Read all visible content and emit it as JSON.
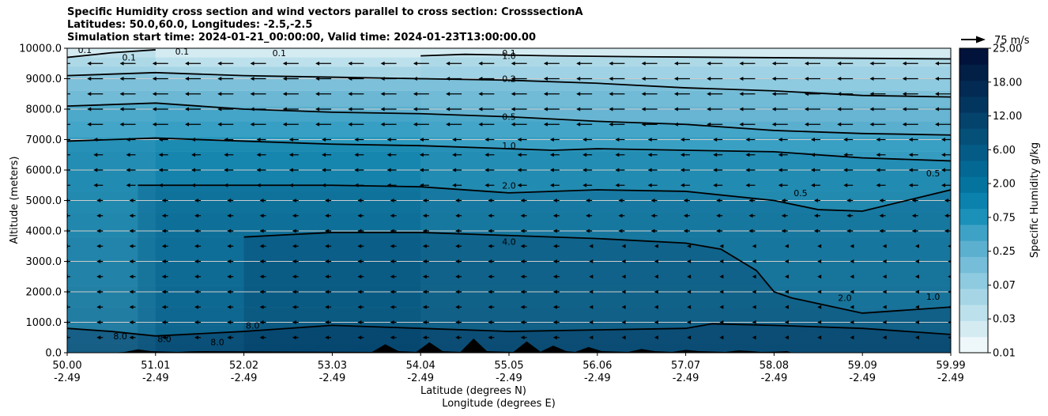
{
  "title_lines": [
    "Specific Humidity cross section and wind vectors parallel to cross section: CrosssectionA",
    "Latitudes: 50.0,60.0, Longitudes: -2.5,-2.5",
    "Simulation start time: 2024-01-21_00:00:00, Valid time: 2024-01-23T13:00:00.00"
  ],
  "chart_data": {
    "type": "contourf",
    "title": "Specific Humidity cross section and wind vectors parallel to cross section: CrosssectionA",
    "ylabel": "Altitude (meters)",
    "xlabel_lines": [
      "Latitude (degrees N)",
      "Longitude (degrees E)"
    ],
    "ylim": [
      0,
      10000
    ],
    "yticks": [
      "0.0",
      "1000.0",
      "2000.0",
      "3000.0",
      "4000.0",
      "5000.0",
      "6000.0",
      "7000.0",
      "8000.0",
      "9000.0",
      "10000.0"
    ],
    "xticks": [
      {
        "lat": "50.00",
        "lon": "-2.49"
      },
      {
        "lat": "51.01",
        "lon": "-2.49"
      },
      {
        "lat": "52.02",
        "lon": "-2.49"
      },
      {
        "lat": "53.03",
        "lon": "-2.49"
      },
      {
        "lat": "54.04",
        "lon": "-2.49"
      },
      {
        "lat": "55.05",
        "lon": "-2.49"
      },
      {
        "lat": "56.06",
        "lon": "-2.49"
      },
      {
        "lat": "57.07",
        "lon": "-2.49"
      },
      {
        "lat": "58.08",
        "lon": "-2.49"
      },
      {
        "lat": "59.09",
        "lon": "-2.49"
      },
      {
        "lat": "59.99",
        "lon": "-2.49"
      }
    ],
    "colorbar": {
      "label": "Specific Humidity g/kg",
      "tick_labels": [
        "0.01",
        "0.03",
        "0.07",
        "0.25",
        "0.75",
        "2.00",
        "6.00",
        "12.00",
        "18.00",
        "25.00"
      ]
    },
    "quiver_key": "75 m/s",
    "contour_levels": [
      0.1,
      0.2,
      0.5,
      1.0,
      2.0,
      4.0,
      8.0
    ],
    "contour_labels": [
      "0.1",
      "0.1",
      "0.1",
      "0.1",
      "0.1",
      "0.2",
      "0.5",
      "1.0",
      "2.0",
      "4.0",
      "8.0",
      "8.0",
      "8.0",
      "8.0",
      "0.5",
      "0.5",
      "1.0",
      "2.0",
      "1.0"
    ],
    "contour_lines": [
      {
        "level": "0.1",
        "points": [
          [
            0,
            9700
          ],
          [
            5,
            9850
          ],
          [
            10,
            9950
          ]
        ]
      },
      {
        "level": "0.1",
        "points": [
          [
            40,
            9750
          ],
          [
            45,
            9800
          ],
          [
            55,
            9750
          ],
          [
            65,
            9720
          ],
          [
            75,
            9700
          ],
          [
            85,
            9680
          ],
          [
            100,
            9650
          ]
        ]
      },
      {
        "level": "0.2",
        "points": [
          [
            0,
            9100
          ],
          [
            10,
            9200
          ],
          [
            20,
            9100
          ],
          [
            30,
            9050
          ],
          [
            40,
            9000
          ],
          [
            50,
            8950
          ],
          [
            60,
            8850
          ],
          [
            70,
            8700
          ],
          [
            80,
            8600
          ],
          [
            90,
            8450
          ],
          [
            100,
            8400
          ]
        ]
      },
      {
        "level": "0.5",
        "points": [
          [
            0,
            8100
          ],
          [
            10,
            8200
          ],
          [
            20,
            8000
          ],
          [
            30,
            7900
          ],
          [
            40,
            7850
          ],
          [
            50,
            7750
          ],
          [
            60,
            7600
          ],
          [
            70,
            7500
          ],
          [
            80,
            7300
          ],
          [
            90,
            7200
          ],
          [
            100,
            7150
          ]
        ]
      },
      {
        "level": "1.0",
        "points": [
          [
            0,
            6950
          ],
          [
            10,
            7050
          ],
          [
            20,
            6950
          ],
          [
            30,
            6850
          ],
          [
            40,
            6800
          ],
          [
            50,
            6700
          ],
          [
            55,
            6650
          ],
          [
            60,
            6700
          ],
          [
            70,
            6650
          ],
          [
            80,
            6600
          ],
          [
            90,
            6400
          ],
          [
            100,
            6300
          ]
        ]
      },
      {
        "level": "2.0",
        "points": [
          [
            8,
            5500
          ],
          [
            20,
            5500
          ],
          [
            30,
            5500
          ],
          [
            40,
            5450
          ],
          [
            50,
            5250
          ],
          [
            60,
            5350
          ],
          [
            70,
            5300
          ],
          [
            80,
            5000
          ],
          [
            85,
            4700
          ],
          [
            90,
            4650
          ],
          [
            100,
            5350
          ]
        ]
      },
      {
        "level": "4.0",
        "points": [
          [
            20,
            3800
          ],
          [
            30,
            3950
          ],
          [
            40,
            3950
          ],
          [
            50,
            3850
          ],
          [
            60,
            3750
          ],
          [
            70,
            3600
          ],
          [
            74,
            3400
          ],
          [
            78,
            2700
          ],
          [
            80,
            2000
          ],
          [
            82,
            1800
          ],
          [
            90,
            1300
          ],
          [
            100,
            1500
          ]
        ]
      },
      {
        "level": "8.0",
        "points": [
          [
            0,
            800
          ],
          [
            5,
            700
          ],
          [
            10,
            550
          ],
          [
            20,
            700
          ],
          [
            30,
            900
          ],
          [
            40,
            800
          ],
          [
            50,
            700
          ],
          [
            60,
            750
          ],
          [
            70,
            800
          ],
          [
            73,
            950
          ],
          [
            80,
            900
          ],
          [
            90,
            800
          ],
          [
            100,
            600
          ]
        ]
      }
    ],
    "contour_label_positions": [
      [
        2,
        9950
      ],
      [
        7,
        9700
      ],
      [
        13,
        9900
      ],
      [
        24,
        9850
      ],
      [
        50,
        9850
      ],
      [
        50,
        9000
      ],
      [
        50,
        7750
      ],
      [
        50,
        6800
      ],
      [
        50,
        5500
      ],
      [
        50,
        3650
      ],
      [
        6,
        550
      ],
      [
        11,
        450
      ],
      [
        17,
        350
      ],
      [
        21,
        900
      ],
      [
        83,
        5250
      ],
      [
        98,
        5900
      ],
      [
        98,
        1850
      ],
      [
        88,
        1800
      ],
      [
        50,
        9750
      ]
    ],
    "wind_arrow_levels_m": [
      500,
      1000,
      1500,
      2000,
      2500,
      3000,
      3500,
      4000,
      4500,
      5000,
      5500,
      6000,
      6500,
      7000,
      7500,
      8000,
      8500,
      9000,
      9500
    ],
    "wind_arrow_columns": 28,
    "terrain_peaks_pct": [
      [
        8,
        0.7
      ],
      [
        14,
        0.3
      ],
      [
        36,
        1.8
      ],
      [
        41,
        2.2
      ],
      [
        46,
        3.0
      ],
      [
        52,
        2.4
      ],
      [
        55,
        1.5
      ],
      [
        59,
        1.2
      ],
      [
        65,
        0.8
      ],
      [
        70,
        0.6
      ],
      [
        76,
        0.5
      ],
      [
        80,
        0.2
      ]
    ]
  },
  "colors": {
    "contourf_ramp": [
      "#eef7fa",
      "#d4ebf2",
      "#bde1ec",
      "#a6d6e6",
      "#8ecae0",
      "#75bdd8",
      "#5cb0cf",
      "#3ea2c6",
      "#1b91ba",
      "#0a82ad",
      "#04749f",
      "#036893",
      "#045c86",
      "#055079",
      "#04436b",
      "#03365e",
      "#022a52",
      "#021f46",
      "#01133a"
    ],
    "contour": "#000000",
    "terrain": "#000000",
    "grid": "#cccccc"
  }
}
